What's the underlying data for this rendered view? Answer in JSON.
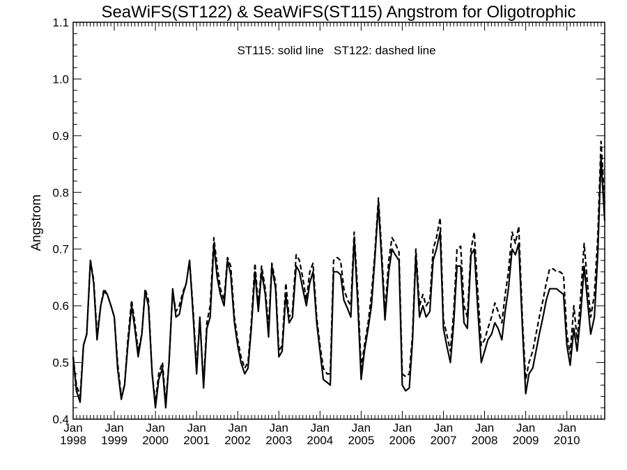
{
  "chart_data": {
    "type": "line",
    "title": "SeaWiFS(ST122) & SeaWiFS(ST115)  Angstrom for Oligotrophic",
    "annotation": "ST115: solid line   ST122: dashed line",
    "xlabel": "",
    "ylabel": "Angstrom",
    "xlim": [
      1998.0,
      2010.92
    ],
    "ylim": [
      0.4,
      1.1
    ],
    "y_ticks": [
      "0.4",
      "0.5",
      "0.6",
      "0.7",
      "0.8",
      "0.9",
      "1.0",
      "1.1"
    ],
    "x_ticks": [
      {
        "month": "Jan",
        "year": "1998",
        "x": 1998.0
      },
      {
        "month": "Jan",
        "year": "1999",
        "x": 1999.0
      },
      {
        "month": "Jan",
        "year": "2000",
        "x": 2000.0
      },
      {
        "month": "Jan",
        "year": "2001",
        "x": 2001.0
      },
      {
        "month": "Jan",
        "year": "2002",
        "x": 2002.0
      },
      {
        "month": "Jan",
        "year": "2003",
        "x": 2003.0
      },
      {
        "month": "Jan",
        "year": "2004",
        "x": 2004.0
      },
      {
        "month": "Jan",
        "year": "2005",
        "x": 2005.0
      },
      {
        "month": "Jan",
        "year": "2006",
        "x": 2006.0
      },
      {
        "month": "Jan",
        "year": "2007",
        "x": 2007.0
      },
      {
        "month": "Jan",
        "year": "2008",
        "x": 2008.0
      },
      {
        "month": "Jan",
        "year": "2009",
        "x": 2009.0
      },
      {
        "month": "Jan",
        "year": "2010",
        "x": 2010.0
      }
    ],
    "grid": false,
    "series": [
      {
        "name": "ST115",
        "style": "solid",
        "color": "#000000",
        "x": [
          1998.0,
          1998.08,
          1998.17,
          1998.25,
          1998.33,
          1998.42,
          1998.5,
          1998.58,
          1998.67,
          1998.75,
          1998.83,
          1998.92,
          1999.0,
          1999.08,
          1999.17,
          1999.25,
          1999.33,
          1999.42,
          1999.5,
          1999.58,
          1999.67,
          1999.75,
          1999.83,
          1999.92,
          2000.0,
          2000.08,
          2000.17,
          2000.25,
          2000.33,
          2000.42,
          2000.5,
          2000.58,
          2000.67,
          2000.75,
          2000.83,
          2000.92,
          2001.0,
          2001.08,
          2001.17,
          2001.25,
          2001.33,
          2001.42,
          2001.5,
          2001.58,
          2001.67,
          2001.75,
          2001.83,
          2001.92,
          2002.0,
          2002.08,
          2002.17,
          2002.25,
          2002.33,
          2002.42,
          2002.5,
          2002.58,
          2002.67,
          2002.75,
          2002.83,
          2002.92,
          2003.0,
          2003.08,
          2003.17,
          2003.25,
          2003.33,
          2003.42,
          2003.5,
          2003.58,
          2003.67,
          2003.75,
          2003.83,
          2003.92,
          2004.0,
          2004.08,
          2004.17,
          2004.25,
          2004.33,
          2004.42,
          2004.5,
          2004.58,
          2004.67,
          2004.75,
          2004.83,
          2004.92,
          2005.0,
          2005.08,
          2005.17,
          2005.25,
          2005.33,
          2005.42,
          2005.5,
          2005.58,
          2005.67,
          2005.75,
          2005.83,
          2005.92,
          2006.0,
          2006.08,
          2006.17,
          2006.25,
          2006.33,
          2006.42,
          2006.5,
          2006.58,
          2006.67,
          2006.75,
          2006.83,
          2006.92,
          2007.0,
          2007.08,
          2007.17,
          2007.25,
          2007.33,
          2007.42,
          2007.5,
          2007.58,
          2007.67,
          2007.75,
          2007.83,
          2007.92,
          2008.0,
          2008.08,
          2008.17,
          2008.25,
          2008.33,
          2008.42,
          2008.5,
          2008.58,
          2008.67,
          2008.75,
          2008.83,
          2008.92,
          2009.0,
          2009.08,
          2009.17,
          2009.25,
          2009.33,
          2009.42,
          2009.5,
          2009.58,
          2009.67,
          2009.75,
          2009.83,
          2009.92,
          2010.0,
          2010.08,
          2010.17,
          2010.25,
          2010.33,
          2010.42,
          2010.5,
          2010.58,
          2010.67,
          2010.75,
          2010.83,
          2010.92
        ],
        "y": [
          0.51,
          0.45,
          0.43,
          0.53,
          0.55,
          0.68,
          0.64,
          0.54,
          0.6,
          0.625,
          0.62,
          0.6,
          0.58,
          0.49,
          0.435,
          0.46,
          0.53,
          0.6,
          0.56,
          0.51,
          0.55,
          0.625,
          0.6,
          0.48,
          0.42,
          0.47,
          0.49,
          0.42,
          0.5,
          0.63,
          0.58,
          0.585,
          0.62,
          0.64,
          0.68,
          0.58,
          0.48,
          0.58,
          0.455,
          0.56,
          0.58,
          0.71,
          0.65,
          0.62,
          0.6,
          0.68,
          0.655,
          0.57,
          0.53,
          0.5,
          0.48,
          0.49,
          0.56,
          0.66,
          0.59,
          0.66,
          0.62,
          0.545,
          0.67,
          0.63,
          0.51,
          0.52,
          0.62,
          0.57,
          0.58,
          0.67,
          0.66,
          0.63,
          0.6,
          0.64,
          0.66,
          0.57,
          0.52,
          0.47,
          0.465,
          0.46,
          0.66,
          0.66,
          0.655,
          0.61,
          0.595,
          0.58,
          0.72,
          0.6,
          0.47,
          0.52,
          0.56,
          0.6,
          0.68,
          0.78,
          0.68,
          0.575,
          0.66,
          0.7,
          0.69,
          0.68,
          0.46,
          0.45,
          0.455,
          0.54,
          0.69,
          0.58,
          0.6,
          0.58,
          0.59,
          0.68,
          0.7,
          0.73,
          0.56,
          0.53,
          0.5,
          0.57,
          0.67,
          0.67,
          0.57,
          0.56,
          0.69,
          0.7,
          0.6,
          0.5,
          0.52,
          0.54,
          0.55,
          0.57,
          0.56,
          0.54,
          0.59,
          0.63,
          0.7,
          0.69,
          0.71,
          0.56,
          0.445,
          0.48,
          0.49,
          0.52,
          0.55,
          0.58,
          0.61,
          0.63,
          0.63,
          0.63,
          0.625,
          0.62,
          0.53,
          0.495,
          0.56,
          0.52,
          0.58,
          0.67,
          0.61,
          0.55,
          0.58,
          0.69,
          0.86,
          0.75
        ]
      },
      {
        "name": "ST122",
        "style": "dashed",
        "color": "#000000",
        "x": [
          1998.0,
          1998.08,
          1998.17,
          1998.25,
          1998.33,
          1998.42,
          1998.5,
          1998.58,
          1998.67,
          1998.75,
          1998.83,
          1998.92,
          1999.0,
          1999.08,
          1999.17,
          1999.25,
          1999.33,
          1999.42,
          1999.5,
          1999.58,
          1999.67,
          1999.75,
          1999.83,
          1999.92,
          2000.0,
          2000.08,
          2000.17,
          2000.25,
          2000.33,
          2000.42,
          2000.5,
          2000.58,
          2000.67,
          2000.75,
          2000.83,
          2000.92,
          2001.0,
          2001.08,
          2001.17,
          2001.25,
          2001.33,
          2001.42,
          2001.5,
          2001.58,
          2001.67,
          2001.75,
          2001.83,
          2001.92,
          2002.0,
          2002.08,
          2002.17,
          2002.25,
          2002.33,
          2002.42,
          2002.5,
          2002.58,
          2002.67,
          2002.75,
          2002.83,
          2002.92,
          2003.0,
          2003.08,
          2003.17,
          2003.25,
          2003.33,
          2003.42,
          2003.5,
          2003.58,
          2003.67,
          2003.75,
          2003.83,
          2003.92,
          2004.0,
          2004.08,
          2004.17,
          2004.25,
          2004.33,
          2004.42,
          2004.5,
          2004.58,
          2004.67,
          2004.75,
          2004.83,
          2004.92,
          2005.0,
          2005.08,
          2005.17,
          2005.25,
          2005.33,
          2005.42,
          2005.5,
          2005.58,
          2005.67,
          2005.75,
          2005.83,
          2005.92,
          2006.0,
          2006.08,
          2006.17,
          2006.25,
          2006.33,
          2006.42,
          2006.5,
          2006.58,
          2006.67,
          2006.75,
          2006.83,
          2006.92,
          2007.0,
          2007.08,
          2007.17,
          2007.25,
          2007.33,
          2007.42,
          2007.5,
          2007.58,
          2007.67,
          2007.75,
          2007.83,
          2007.92,
          2008.0,
          2008.08,
          2008.17,
          2008.25,
          2008.33,
          2008.42,
          2008.5,
          2008.58,
          2008.67,
          2008.75,
          2008.83,
          2008.92,
          2009.0,
          2009.08,
          2009.17,
          2009.25,
          2009.33,
          2009.42,
          2009.5,
          2009.58,
          2009.67,
          2009.75,
          2009.83,
          2009.92,
          2010.0,
          2010.08,
          2010.17,
          2010.25,
          2010.33,
          2010.42,
          2010.5,
          2010.58,
          2010.67,
          2010.75,
          2010.83,
          2010.92
        ],
        "y": [
          0.51,
          0.46,
          0.44,
          0.53,
          0.55,
          0.68,
          0.645,
          0.55,
          0.6,
          0.63,
          0.62,
          0.6,
          0.58,
          0.5,
          0.44,
          0.46,
          0.54,
          0.61,
          0.57,
          0.52,
          0.55,
          0.63,
          0.61,
          0.48,
          0.43,
          0.48,
          0.5,
          0.43,
          0.5,
          0.625,
          0.59,
          0.6,
          0.625,
          0.64,
          0.68,
          0.59,
          0.49,
          0.575,
          0.46,
          0.57,
          0.6,
          0.72,
          0.67,
          0.63,
          0.61,
          0.685,
          0.67,
          0.58,
          0.54,
          0.51,
          0.49,
          0.5,
          0.57,
          0.675,
          0.6,
          0.67,
          0.63,
          0.56,
          0.675,
          0.64,
          0.52,
          0.53,
          0.64,
          0.58,
          0.59,
          0.69,
          0.68,
          0.65,
          0.61,
          0.66,
          0.675,
          0.58,
          0.53,
          0.49,
          0.48,
          0.48,
          0.68,
          0.685,
          0.68,
          0.63,
          0.61,
          0.6,
          0.73,
          0.62,
          0.49,
          0.53,
          0.57,
          0.62,
          0.69,
          0.79,
          0.695,
          0.59,
          0.68,
          0.72,
          0.71,
          0.695,
          0.48,
          0.475,
          0.48,
          0.55,
          0.7,
          0.6,
          0.62,
          0.6,
          0.61,
          0.7,
          0.72,
          0.755,
          0.575,
          0.55,
          0.52,
          0.59,
          0.7,
          0.705,
          0.6,
          0.58,
          0.7,
          0.73,
          0.63,
          0.53,
          0.54,
          0.56,
          0.58,
          0.605,
          0.59,
          0.57,
          0.62,
          0.66,
          0.73,
          0.71,
          0.74,
          0.575,
          0.47,
          0.5,
          0.52,
          0.55,
          0.58,
          0.61,
          0.64,
          0.665,
          0.665,
          0.66,
          0.66,
          0.655,
          0.55,
          0.515,
          0.6,
          0.54,
          0.61,
          0.71,
          0.64,
          0.58,
          0.62,
          0.72,
          0.89,
          0.78
        ]
      }
    ]
  }
}
